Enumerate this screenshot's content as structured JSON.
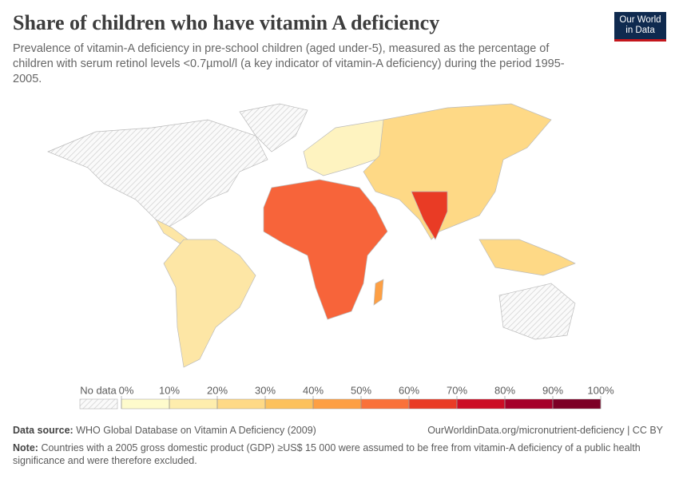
{
  "header": {
    "title": "Share of children who have vitamin A deficiency",
    "subtitle": "Prevalence of vitamin-A deficiency in pre-school children (aged under-5), measured as the percentage of children with serum retinol levels <0.7µmol/l (a key indicator of vitamin-A deficiency) during the period 1995-2005.",
    "logo": [
      "Our World",
      "in Data"
    ]
  },
  "chart_data": {
    "type": "map",
    "legend": {
      "no_data": "No data",
      "xlim": [
        0,
        100
      ],
      "xticks": [
        {
          "value": 0,
          "label": "0%"
        },
        {
          "value": 10,
          "label": "10%"
        },
        {
          "value": 20,
          "label": "20%"
        },
        {
          "value": 30,
          "label": "30%"
        },
        {
          "value": 40,
          "label": "40%"
        },
        {
          "value": 50,
          "label": "50%"
        },
        {
          "value": 60,
          "label": "60%"
        },
        {
          "value": 70,
          "label": "70%"
        },
        {
          "value": 80,
          "label": "80%"
        },
        {
          "value": 90,
          "label": "90%"
        },
        {
          "value": 100,
          "label": "100%"
        }
      ],
      "colors": [
        "#fefbcc",
        "#feedad",
        "#fed986",
        "#fcc15d",
        "#fd9f44",
        "#f9713a",
        "#e93b25",
        "#cc0d25",
        "#a5002a",
        "#7d0026"
      ]
    }
  },
  "footer": {
    "source_label": "Data source:",
    "source": "WHO Global Database on Vitamin A Deficiency (2009)",
    "url": "OurWorldinData.org/micronutrient-deficiency | CC BY",
    "note_label": "Note:",
    "note": "Countries with a 2005 gross domestic product (GDP) ≥US$ 15 000 were assumed to be free from vitamin-A deficiency of a public health significance and were therefore excluded."
  }
}
